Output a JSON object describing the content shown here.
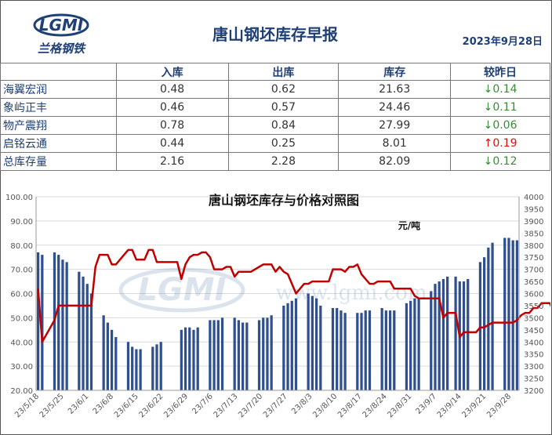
{
  "header": {
    "title": "唐山钢坯库存早报",
    "date": "2023年9月28日",
    "logo_text": "LGMI",
    "logo_subtitle": "兰格钢铁"
  },
  "table": {
    "columns": [
      "入库",
      "出库",
      "库存",
      "较昨日"
    ],
    "rows": [
      {
        "name": "海翼宏润",
        "in": "0.48",
        "out": "0.62",
        "stock": "21.63",
        "change": "↓0.14",
        "dir": "down"
      },
      {
        "name": "象屿正丰",
        "in": "0.46",
        "out": "0.57",
        "stock": "24.46",
        "change": "↓0.11",
        "dir": "down"
      },
      {
        "name": "物产震翔",
        "in": "0.78",
        "out": "0.84",
        "stock": "27.99",
        "change": "↓0.06",
        "dir": "down"
      },
      {
        "name": "启铭云通",
        "in": "0.44",
        "out": "0.25",
        "stock": "8.01",
        "change": "↑0.19",
        "dir": "up"
      },
      {
        "name": "总库存量",
        "in": "2.16",
        "out": "2.28",
        "stock": "82.09",
        "change": "↓0.12",
        "dir": "down"
      }
    ]
  },
  "colors": {
    "bar": "#2f4f8f",
    "line": "#c00000",
    "up": "#e01010",
    "down": "#3a8a3a",
    "title": "#1f3f77"
  },
  "chart_data": {
    "type": "bar",
    "title": "唐山钢坯库存与价格对照图",
    "unit_label": "元/吨",
    "watermark": "www.lgmi.com",
    "ylim": [
      20,
      100
    ],
    "y_ticks": [
      "20.00",
      "30.00",
      "40.00",
      "50.00",
      "60.00",
      "70.00",
      "80.00",
      "90.00",
      "100.00"
    ],
    "y2lim": [
      3200,
      4000
    ],
    "y2_ticks": [
      "3200",
      "3250",
      "3300",
      "3350",
      "3400",
      "3450",
      "3500",
      "3550",
      "3600",
      "3650",
      "3700",
      "3750",
      "3800",
      "3850",
      "3900",
      "3950",
      "4000"
    ],
    "x_labels": [
      "23/5/18",
      "23/5/25",
      "23/6/1",
      "23/6/8",
      "23/6/15",
      "23/6/22",
      "23/6/29",
      "23/7/6",
      "23/7/13",
      "23/7/20",
      "23/7/27",
      "23/8/3",
      "23/8/10",
      "23/8/17",
      "23/8/24",
      "23/8/31",
      "23/9/7",
      "23/9/14",
      "23/9/21",
      "23/9/28"
    ],
    "grid": true,
    "series": [
      {
        "kind": "bar",
        "values": [
          77,
          76,
          null,
          null,
          77,
          76,
          74,
          73,
          null,
          null,
          69,
          67,
          64,
          60,
          null,
          null,
          51,
          48,
          45,
          42,
          null,
          null,
          40,
          38,
          37,
          37,
          null,
          null,
          38,
          39,
          40,
          null,
          null,
          null,
          null,
          45,
          46,
          46,
          45,
          46,
          null,
          null,
          49,
          49,
          49,
          50,
          null,
          null,
          50,
          49,
          48,
          48,
          null,
          null,
          49,
          50,
          50,
          51,
          null,
          null,
          55,
          56,
          57,
          58,
          null,
          null,
          60,
          59,
          58,
          55,
          null,
          null,
          54,
          54,
          53,
          52,
          null,
          null,
          52,
          52,
          53,
          53,
          null,
          null,
          54,
          53,
          53,
          53,
          null,
          null,
          56,
          57,
          58,
          58,
          null,
          null,
          61,
          64,
          65,
          66,
          67,
          null,
          67,
          65,
          65,
          66,
          null,
          null,
          73,
          75,
          79,
          81,
          null,
          null,
          83,
          83,
          82,
          82
        ]
      },
      {
        "kind": "line",
        "values": [
          3620,
          3400,
          null,
          null,
          3490,
          3550,
          3550,
          3550,
          3550,
          3550,
          3550,
          3550,
          3550,
          3550,
          3710,
          3760,
          3760,
          3760,
          3720,
          3720,
          3740,
          3760,
          3780,
          3780,
          3740,
          3740,
          3740,
          3780,
          3780,
          3730,
          3730,
          3730,
          3730,
          3730,
          3730,
          3660,
          3720,
          3750,
          3760,
          3760,
          3770,
          3770,
          3750,
          3700,
          3700,
          3700,
          3710,
          3710,
          3670,
          3690,
          3690,
          3690,
          3690,
          3700,
          3710,
          3720,
          3720,
          3720,
          3690,
          3710,
          3690,
          3680,
          3640,
          3600,
          3620,
          3640,
          3640,
          3650,
          3650,
          3650,
          3650,
          3650,
          3700,
          3700,
          3700,
          3690,
          3710,
          3710,
          3720,
          3680,
          3660,
          3640,
          3640,
          3650,
          3650,
          3650,
          3650,
          3620,
          3620,
          3620,
          3620,
          3620,
          3590,
          3580,
          3580,
          3580,
          3580,
          3580,
          3580,
          3500,
          3520,
          3520,
          3520,
          3420,
          3440,
          3440,
          3440,
          3440,
          3460,
          3460,
          3470,
          3480,
          3480,
          3480,
          3480,
          3480,
          3480,
          3490,
          3510,
          3520,
          3520,
          3540,
          3540,
          3560,
          3560,
          3560,
          3520,
          3520,
          3520,
          3520,
          3530,
          3540,
          3540,
          3560
        ]
      }
    ]
  }
}
